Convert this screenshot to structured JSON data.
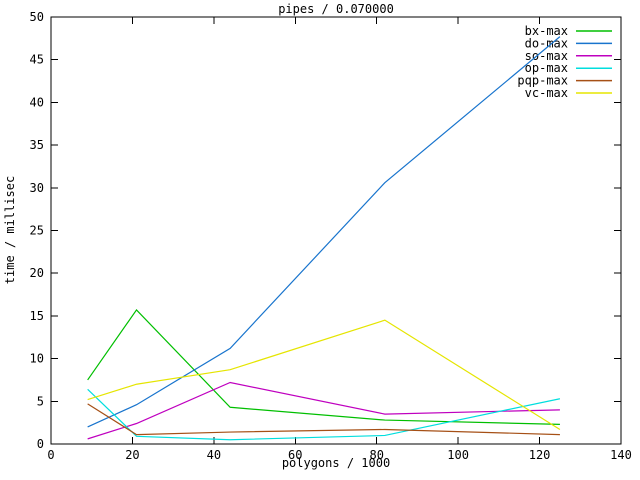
{
  "chart": {
    "background_color": "#ffffff",
    "frame_color": "#000000",
    "text_color": "#000000"
  },
  "chart_data": {
    "type": "line",
    "title": "pipes / 0.070000",
    "xlabel": "polygons / 1000",
    "ylabel": "time / millisec",
    "xlim": [
      0,
      140
    ],
    "ylim": [
      0,
      50
    ],
    "x_ticks": [
      0,
      20,
      40,
      60,
      80,
      100,
      120,
      140
    ],
    "y_ticks": [
      0,
      5,
      10,
      15,
      20,
      25,
      30,
      35,
      40,
      45,
      50
    ],
    "grid": false,
    "legend_position": "top-right",
    "legend_entries": [
      "bx-max",
      "do-max",
      "so-max",
      "op-max",
      "pqp-max",
      "vc-max"
    ],
    "x": [
      9,
      21,
      44,
      82,
      125
    ],
    "series": [
      {
        "name": "bx-max",
        "color": "#00bf00",
        "values": [
          7.5,
          15.7,
          4.3,
          2.8,
          2.3
        ]
      },
      {
        "name": "do-max",
        "color": "#1874cd",
        "values": [
          2.0,
          4.6,
          11.2,
          30.6,
          47.7
        ]
      },
      {
        "name": "so-max",
        "color": "#bf00bf",
        "values": [
          0.6,
          2.4,
          7.2,
          3.5,
          4.0
        ]
      },
      {
        "name": "op-max",
        "color": "#00dede",
        "values": [
          6.4,
          0.9,
          0.5,
          1.0,
          5.3
        ]
      },
      {
        "name": "pqp-max",
        "color": "#a65016",
        "values": [
          4.7,
          1.1,
          1.4,
          1.7,
          1.1
        ]
      },
      {
        "name": "vc-max",
        "color": "#e5e500",
        "values": [
          5.2,
          7.0,
          8.7,
          14.5,
          1.7
        ]
      }
    ]
  }
}
